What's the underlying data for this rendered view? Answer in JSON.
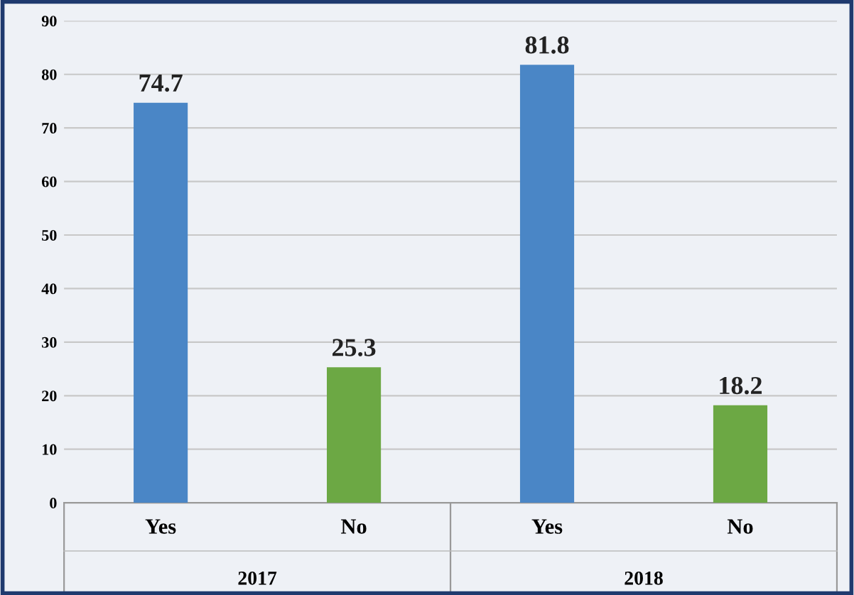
{
  "chart_data": {
    "type": "bar",
    "categories": [
      "Yes",
      "No",
      "Yes",
      "No"
    ],
    "values": [
      74.7,
      25.3,
      81.8,
      18.2
    ],
    "colors": [
      "#4a86c6",
      "#6ca844",
      "#4a86c6",
      "#6ca844"
    ],
    "data_labels": true,
    "ylim": [
      0,
      90
    ],
    "yticks": [
      0,
      10,
      20,
      30,
      40,
      50,
      60,
      70,
      80,
      90
    ],
    "grid": "y",
    "annotations": [
      "2017",
      "2018"
    ]
  }
}
